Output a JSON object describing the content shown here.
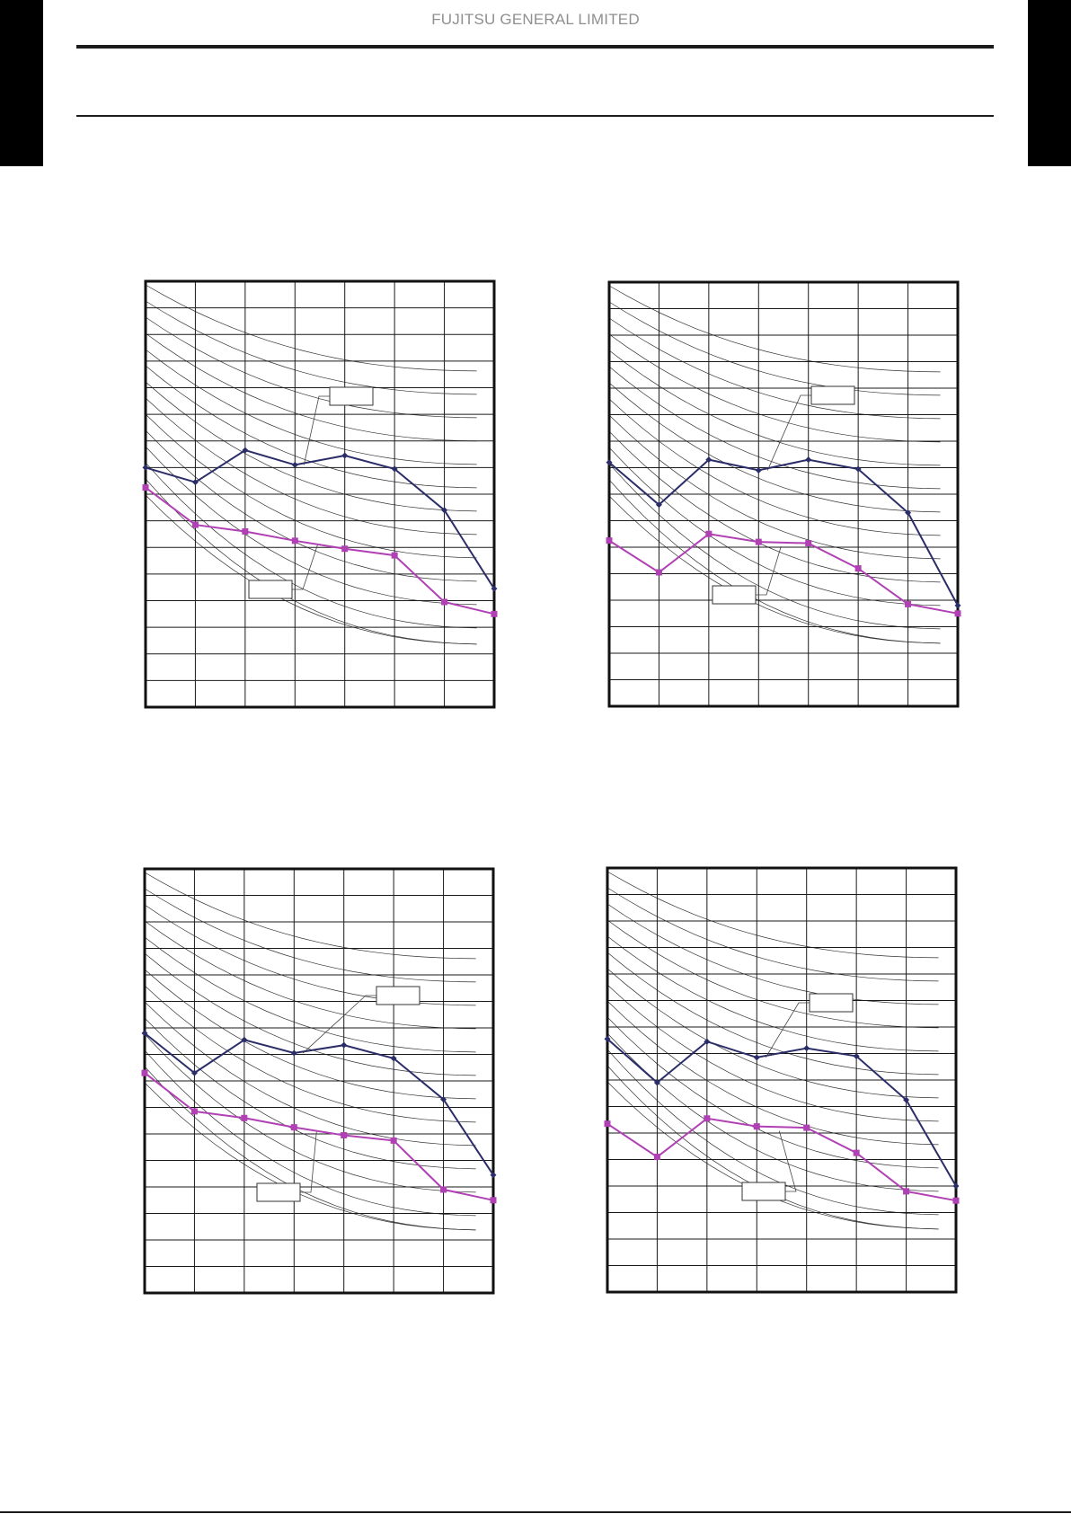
{
  "header": {
    "brand": "FUJITSU GENERAL LIMITED"
  },
  "colors": {
    "series_upper": "#2b2d68",
    "series_lower": "#b040b4",
    "grid": "#1a1a1a",
    "curves": "#333333"
  },
  "chart_data": [
    {
      "type": "line",
      "title": "",
      "xlabel": "",
      "ylabel": "",
      "xlim": [
        0,
        7
      ],
      "ylim": [
        0,
        16
      ],
      "x": [
        0,
        1,
        2,
        3,
        4,
        5,
        6,
        7
      ],
      "grid": true,
      "series": [
        {
          "values": [
            9.0,
            8.45,
            9.65,
            9.1,
            9.45,
            8.95,
            7.4,
            4.45
          ]
        },
        {
          "values": [
            8.25,
            6.85,
            6.6,
            6.25,
            5.95,
            5.7,
            3.95,
            3.5
          ]
        }
      ],
      "annotations": [
        {
          "text": "",
          "target_series": 0
        },
        {
          "text": "",
          "target_series": 1
        }
      ]
    },
    {
      "type": "line",
      "title": "",
      "xlabel": "",
      "ylabel": "",
      "xlim": [
        0,
        7
      ],
      "ylim": [
        0,
        16
      ],
      "x": [
        0,
        1,
        2,
        3,
        4,
        5,
        6,
        7
      ],
      "grid": true,
      "series": [
        {
          "values": [
            9.2,
            7.6,
            9.3,
            8.9,
            9.3,
            8.95,
            7.3,
            3.8
          ]
        },
        {
          "values": [
            6.25,
            5.05,
            6.5,
            6.2,
            6.15,
            5.2,
            3.85,
            3.5
          ]
        }
      ],
      "annotations": [
        {
          "text": "",
          "target_series": 0
        },
        {
          "text": "",
          "target_series": 1
        }
      ]
    },
    {
      "type": "line",
      "title": "",
      "xlabel": "",
      "ylabel": "",
      "xlim": [
        0,
        7
      ],
      "ylim": [
        0,
        16
      ],
      "x": [
        0,
        1,
        2,
        3,
        4,
        5,
        6,
        7
      ],
      "grid": true,
      "series": [
        {
          "values": [
            9.8,
            8.3,
            9.55,
            9.05,
            9.35,
            8.85,
            7.3,
            4.45
          ]
        },
        {
          "values": [
            8.3,
            6.85,
            6.6,
            6.25,
            5.95,
            5.75,
            3.9,
            3.5
          ]
        }
      ],
      "annotations": [
        {
          "text": "",
          "target_series": 0
        },
        {
          "text": "",
          "target_series": 1
        }
      ]
    },
    {
      "type": "line",
      "title": "",
      "xlabel": "",
      "ylabel": "",
      "xlim": [
        0,
        7
      ],
      "ylim": [
        0,
        16
      ],
      "x": [
        0,
        1,
        2,
        3,
        4,
        5,
        6,
        7
      ],
      "grid": true,
      "series": [
        {
          "values": [
            9.55,
            7.9,
            9.45,
            8.85,
            9.2,
            8.9,
            7.25,
            4.0
          ]
        },
        {
          "values": [
            6.35,
            5.1,
            6.55,
            6.25,
            6.2,
            5.25,
            3.8,
            3.45
          ]
        }
      ],
      "annotations": [
        {
          "text": "",
          "target_series": 0
        },
        {
          "text": "",
          "target_series": 1
        }
      ]
    }
  ]
}
